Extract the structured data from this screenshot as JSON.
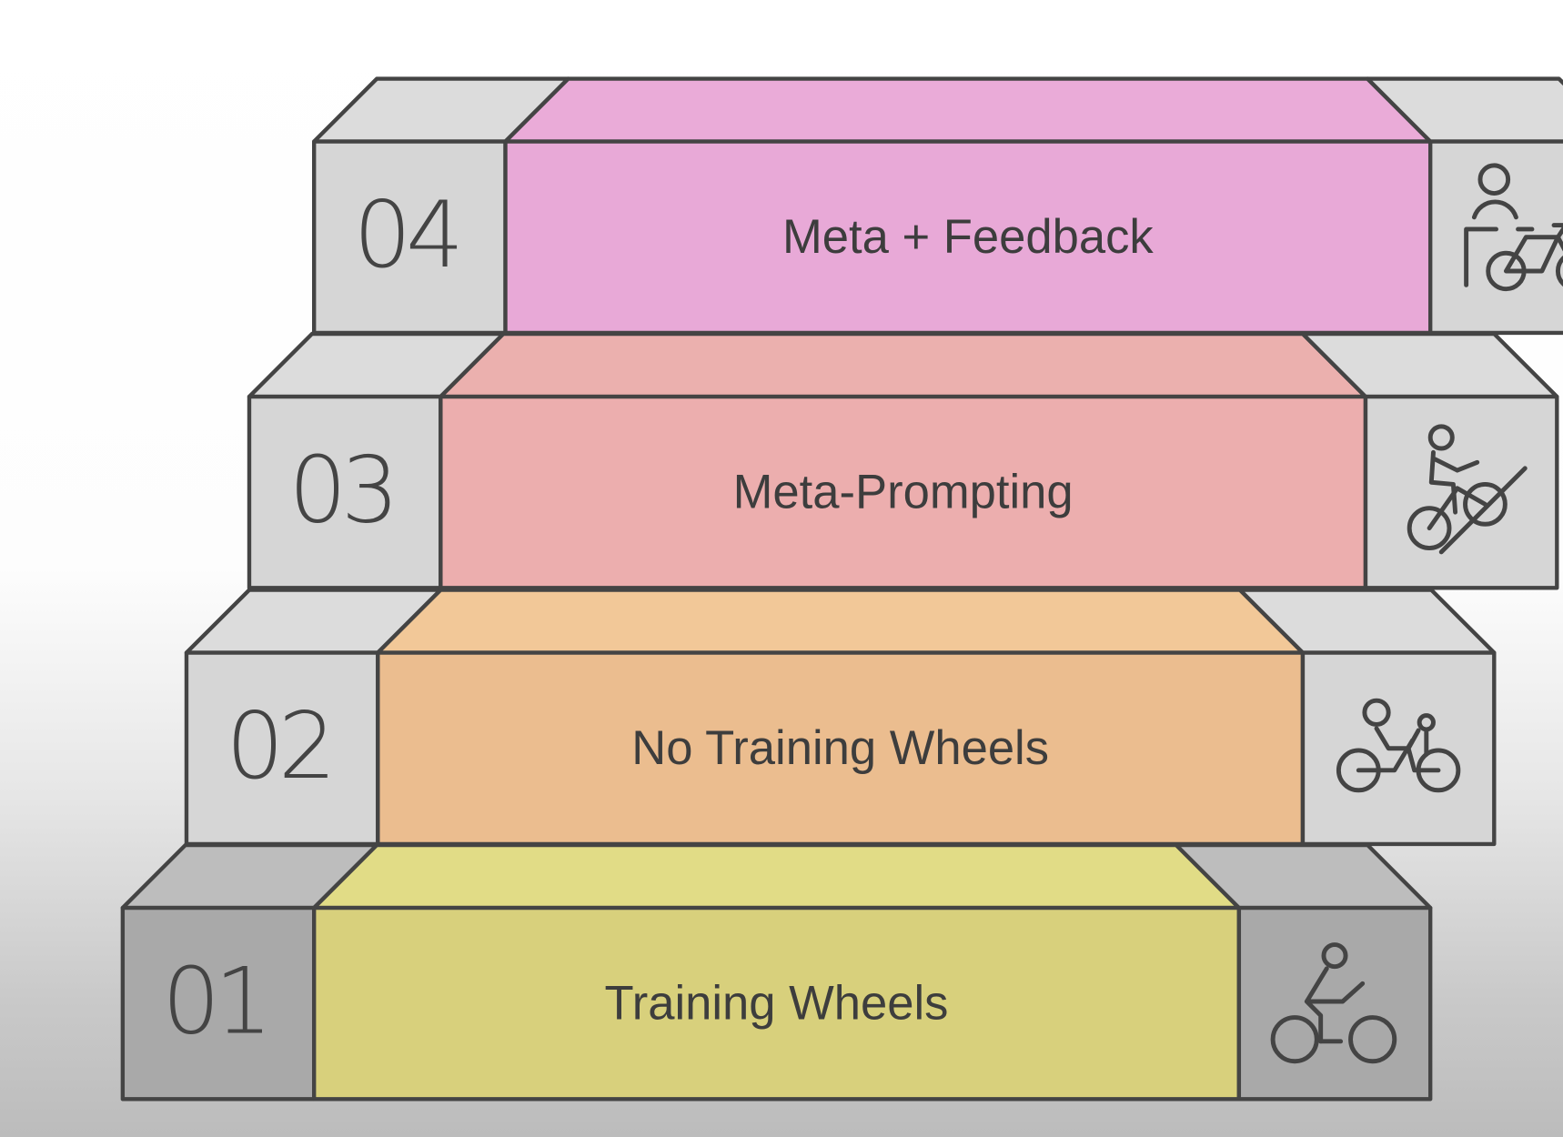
{
  "steps": [
    {
      "number": "01",
      "label": "Training Wheels",
      "icon": "cyclist-icon",
      "color": "#d8d07c",
      "top_color": "#e1dc86"
    },
    {
      "number": "02",
      "label": "No Training Wheels",
      "icon": "riding-with-helper-icon",
      "color": "#ebbd8f",
      "top_color": "#f2c898"
    },
    {
      "number": "03",
      "label": "Meta-Prompting",
      "icon": "uphill-cyclist-icon",
      "color": "#ecaeae",
      "top_color": "#ebb0ae"
    },
    {
      "number": "04",
      "label": "Meta + Feedback",
      "icon": "person-with-bicycle-icon",
      "color": "#e8a9d7",
      "top_color": "#eaabd8"
    }
  ]
}
